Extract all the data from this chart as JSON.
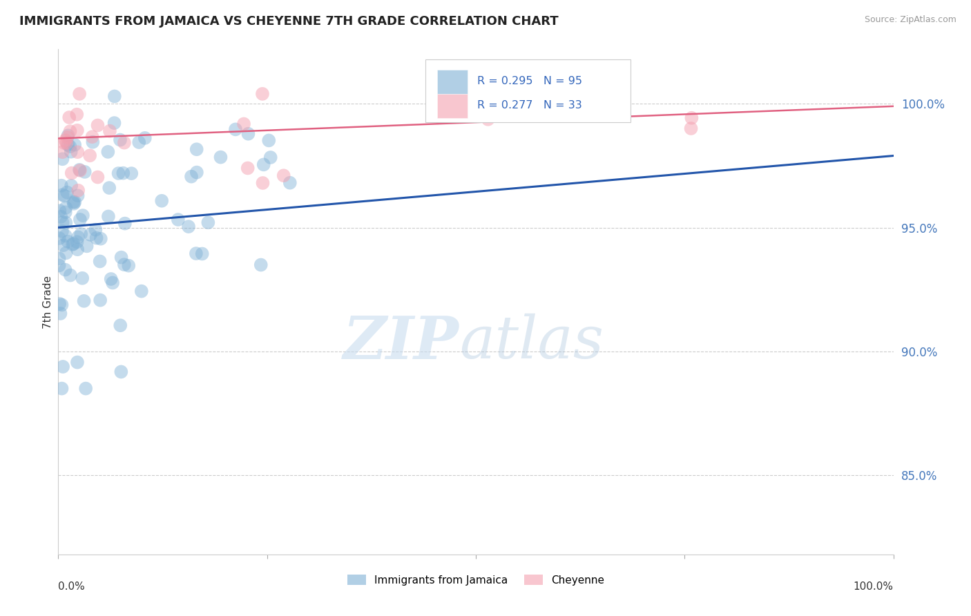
{
  "title": "IMMIGRANTS FROM JAMAICA VS CHEYENNE 7TH GRADE CORRELATION CHART",
  "source": "Source: ZipAtlas.com",
  "ylabel": "7th Grade",
  "ytick_labels": [
    "85.0%",
    "90.0%",
    "95.0%",
    "100.0%"
  ],
  "ytick_values": [
    0.85,
    0.9,
    0.95,
    1.0
  ],
  "xlim": [
    0.0,
    1.0
  ],
  "ylim": [
    0.818,
    1.022
  ],
  "legend_blue_label": "Immigrants from Jamaica",
  "legend_pink_label": "Cheyenne",
  "blue_color": "#7EB0D5",
  "pink_color": "#F4A0B0",
  "blue_line_color": "#2255AA",
  "pink_line_color": "#E06080",
  "watermark_zip": "ZIP",
  "watermark_atlas": "atlas",
  "blue_seed": 12345,
  "pink_seed": 67890
}
